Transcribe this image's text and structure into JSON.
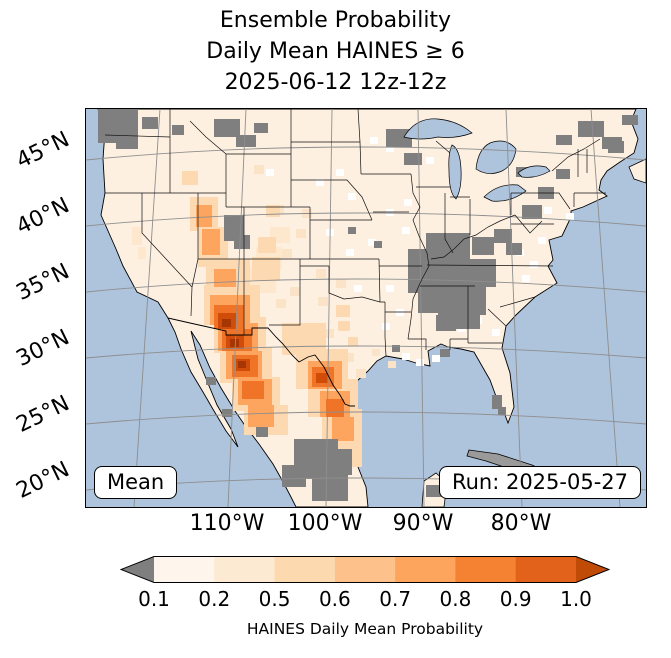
{
  "title": {
    "line1": "Ensemble Probability",
    "line2": "Daily Mean HAINES ≥ 6",
    "line3": "2025-06-12 12z-12z"
  },
  "map": {
    "annotation_left": "Mean",
    "annotation_right": "Run: 2025-05-27",
    "lat_ticks": [
      "45°N",
      "40°N",
      "35°N",
      "30°N",
      "25°N",
      "20°N"
    ],
    "lon_ticks": [
      "110°W",
      "100°W",
      "90°W",
      "80°W"
    ],
    "ocean_color": "#aec3dc",
    "land_base_color": "#fdf0e1",
    "missing_color": "#7f7f7f",
    "shade_colors": {
      "light": "#fdd9b2",
      "moderate": "#fda55e",
      "strong": "#f07428",
      "core": "#d14c08",
      "max": "#a63603"
    },
    "speck_colors": {
      "white": "#ffffff",
      "cream": "#fbe3c8",
      "pale": "#fde7cd"
    }
  },
  "colorbar": {
    "label": "HAINES Daily Mean Probability",
    "tick_labels": [
      "0.1",
      "0.2",
      "0.5",
      "0.6",
      "0.7",
      "0.8",
      "0.9",
      "1.0"
    ],
    "segment_colors": [
      "#fef6ec",
      "#fdead2",
      "#fdd9b0",
      "#fdc28b",
      "#fda55c",
      "#f58232",
      "#e2611b"
    ],
    "under_color": "#7f7f7f",
    "over_color": "#bf4b07"
  },
  "chart_data": {
    "type": "heatmap",
    "title": "Ensemble Probability Daily Mean HAINES ≥ 6 2025-06-12 12z-12z",
    "variable": "HAINES Daily Mean Probability",
    "statistic": "Mean",
    "run": "2025-05-27",
    "valid": "2025-06-12 12z-12z",
    "levels": [
      0.1,
      0.2,
      0.5,
      0.6,
      0.7,
      0.8,
      0.9,
      1.0
    ],
    "projection": "Lambert conformal over CONUS and northern Mexico",
    "extent": {
      "lon_w": [
        126,
        66
      ],
      "lat_n": [
        18,
        48
      ]
    },
    "lat_gridlines_n": [
      45,
      40,
      35,
      30,
      25,
      20
    ],
    "lon_gridlines_w": [
      110,
      100,
      90,
      80
    ],
    "regions": [
      {
        "area": "Southern Arizona / Sonora border",
        "probability": "0.8-1.0"
      },
      {
        "area": "Sierra Madre Occidental (Chihuahua/Durango, Mexico)",
        "probability": "0.5-0.8"
      },
      {
        "area": "Big Bend Texas / Coahuila / Nuevo Leon",
        "probability": "0.5-0.8"
      },
      {
        "area": "Nevada / Utah tongue",
        "probability": "0.3-0.6"
      },
      {
        "area": "Most of CONUS",
        "probability": "0.1-0.2"
      },
      {
        "area": "Midwest (MO-IL-IN-OH valley), Pacific Northwest coast, central Mexico, parts of Northeast and Canada",
        "probability": "missing (gray)"
      }
    ]
  }
}
